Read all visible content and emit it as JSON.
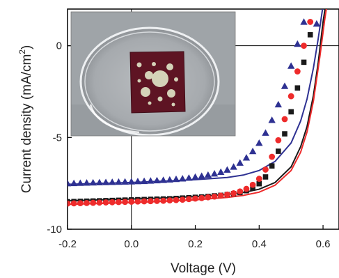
{
  "chart_data": {
    "type": "scatter",
    "title": "",
    "xlabel": "Voltage (V)",
    "ylabel_main": "Current density (mA/cm",
    "ylabel_sup": "2",
    "ylabel_close": ")",
    "xlim": [
      -0.2,
      0.65
    ],
    "ylim": [
      -10,
      2
    ],
    "x_ticks": [
      -0.2,
      0.0,
      0.2,
      0.4,
      0.6
    ],
    "x_tick_labels": [
      "-0.2",
      "0.0",
      "0.2",
      "0.4",
      "0.6"
    ],
    "y_ticks": [
      -10,
      -5,
      0
    ],
    "y_tick_labels": [
      "-10",
      "-5",
      "0"
    ],
    "zero_lines": true,
    "inset": "photograph of a Petri dish holding a dark red square device with circular openings",
    "series": [
      {
        "marker": "triangle",
        "color": "#2e3192",
        "points": [
          [
            -0.2,
            -7.5
          ],
          [
            -0.18,
            -7.49
          ],
          [
            -0.16,
            -7.48
          ],
          [
            -0.14,
            -7.47
          ],
          [
            -0.12,
            -7.46
          ],
          [
            -0.1,
            -7.45
          ],
          [
            -0.08,
            -7.44
          ],
          [
            -0.06,
            -7.43
          ],
          [
            -0.04,
            -7.42
          ],
          [
            -0.02,
            -7.41
          ],
          [
            0.0,
            -7.4
          ],
          [
            0.02,
            -7.39
          ],
          [
            0.04,
            -7.38
          ],
          [
            0.06,
            -7.36
          ],
          [
            0.08,
            -7.34
          ],
          [
            0.1,
            -7.32
          ],
          [
            0.12,
            -7.3
          ],
          [
            0.14,
            -7.27
          ],
          [
            0.16,
            -7.24
          ],
          [
            0.18,
            -7.2
          ],
          [
            0.2,
            -7.15
          ],
          [
            0.22,
            -7.1
          ],
          [
            0.24,
            -7.04
          ],
          [
            0.26,
            -6.97
          ],
          [
            0.28,
            -6.88
          ],
          [
            0.3,
            -6.76
          ],
          [
            0.32,
            -6.6
          ],
          [
            0.34,
            -6.38
          ],
          [
            0.36,
            -6.1
          ],
          [
            0.38,
            -5.75
          ],
          [
            0.4,
            -5.3
          ],
          [
            0.42,
            -4.75
          ],
          [
            0.44,
            -4.05
          ],
          [
            0.46,
            -3.2
          ],
          [
            0.48,
            -2.2
          ],
          [
            0.5,
            -1.1
          ],
          [
            0.52,
            0.1
          ],
          [
            0.54,
            1.3
          ],
          [
            0.58,
            1.2
          ]
        ]
      },
      {
        "marker": "square",
        "color": "#1a1a1a",
        "points": [
          [
            -0.2,
            -8.5
          ],
          [
            -0.18,
            -8.49
          ],
          [
            -0.16,
            -8.48
          ],
          [
            -0.14,
            -8.47
          ],
          [
            -0.12,
            -8.46
          ],
          [
            -0.1,
            -8.45
          ],
          [
            -0.08,
            -8.44
          ],
          [
            -0.06,
            -8.43
          ],
          [
            -0.04,
            -8.42
          ],
          [
            -0.02,
            -8.41
          ],
          [
            0.0,
            -8.4
          ],
          [
            0.02,
            -8.39
          ],
          [
            0.04,
            -8.38
          ],
          [
            0.06,
            -8.37
          ],
          [
            0.08,
            -8.36
          ],
          [
            0.1,
            -8.35
          ],
          [
            0.12,
            -8.34
          ],
          [
            0.14,
            -8.32
          ],
          [
            0.16,
            -8.3
          ],
          [
            0.18,
            -8.28
          ],
          [
            0.2,
            -8.26
          ],
          [
            0.22,
            -8.24
          ],
          [
            0.24,
            -8.21
          ],
          [
            0.26,
            -8.18
          ],
          [
            0.28,
            -8.15
          ],
          [
            0.3,
            -8.11
          ],
          [
            0.32,
            -8.06
          ],
          [
            0.34,
            -8.0
          ],
          [
            0.36,
            -7.9
          ],
          [
            0.38,
            -7.75
          ],
          [
            0.4,
            -7.52
          ],
          [
            0.42,
            -7.15
          ],
          [
            0.44,
            -6.55
          ],
          [
            0.46,
            -5.75
          ],
          [
            0.48,
            -4.8
          ],
          [
            0.5,
            -3.6
          ],
          [
            0.52,
            -2.3
          ],
          [
            0.54,
            -0.9
          ],
          [
            0.56,
            0.6
          ]
        ]
      },
      {
        "marker": "circle",
        "color": "#ee2b2b",
        "points": [
          [
            -0.2,
            -8.6
          ],
          [
            -0.18,
            -8.59
          ],
          [
            -0.16,
            -8.58
          ],
          [
            -0.14,
            -8.57
          ],
          [
            -0.12,
            -8.56
          ],
          [
            -0.1,
            -8.55
          ],
          [
            -0.08,
            -8.54
          ],
          [
            -0.06,
            -8.53
          ],
          [
            -0.04,
            -8.52
          ],
          [
            -0.02,
            -8.51
          ],
          [
            0.0,
            -8.5
          ],
          [
            0.02,
            -8.49
          ],
          [
            0.04,
            -8.48
          ],
          [
            0.06,
            -8.47
          ],
          [
            0.08,
            -8.46
          ],
          [
            0.1,
            -8.45
          ],
          [
            0.12,
            -8.43
          ],
          [
            0.14,
            -8.41
          ],
          [
            0.16,
            -8.39
          ],
          [
            0.18,
            -8.36
          ],
          [
            0.2,
            -8.33
          ],
          [
            0.22,
            -8.3
          ],
          [
            0.24,
            -8.26
          ],
          [
            0.26,
            -8.22
          ],
          [
            0.28,
            -8.17
          ],
          [
            0.3,
            -8.11
          ],
          [
            0.32,
            -8.04
          ],
          [
            0.34,
            -7.94
          ],
          [
            0.36,
            -7.8
          ],
          [
            0.38,
            -7.58
          ],
          [
            0.4,
            -7.25
          ],
          [
            0.42,
            -6.75
          ],
          [
            0.44,
            -6.05
          ],
          [
            0.46,
            -5.15
          ],
          [
            0.48,
            -4.0
          ],
          [
            0.5,
            -2.75
          ],
          [
            0.52,
            -1.4
          ],
          [
            0.54,
            0.0
          ],
          [
            0.56,
            1.3
          ]
        ]
      },
      {
        "style": "line",
        "color": "#2e3192",
        "points": [
          [
            -0.2,
            -7.55
          ],
          [
            -0.1,
            -7.5
          ],
          [
            0.0,
            -7.45
          ],
          [
            0.1,
            -7.38
          ],
          [
            0.2,
            -7.3
          ],
          [
            0.3,
            -7.18
          ],
          [
            0.35,
            -7.05
          ],
          [
            0.4,
            -6.8
          ],
          [
            0.45,
            -6.3
          ],
          [
            0.5,
            -5.3
          ],
          [
            0.53,
            -4.1
          ],
          [
            0.55,
            -2.9
          ],
          [
            0.57,
            -1.2
          ],
          [
            0.585,
            0.4
          ],
          [
            0.6,
            2.2
          ]
        ]
      },
      {
        "style": "line",
        "color": "#1a1a1a",
        "points": [
          [
            -0.2,
            -8.45
          ],
          [
            -0.1,
            -8.4
          ],
          [
            0.0,
            -8.35
          ],
          [
            0.1,
            -8.3
          ],
          [
            0.2,
            -8.22
          ],
          [
            0.3,
            -8.1
          ],
          [
            0.35,
            -8.0
          ],
          [
            0.4,
            -7.82
          ],
          [
            0.45,
            -7.45
          ],
          [
            0.5,
            -6.6
          ],
          [
            0.53,
            -5.5
          ],
          [
            0.55,
            -4.4
          ],
          [
            0.57,
            -2.7
          ],
          [
            0.585,
            -0.9
          ],
          [
            0.6,
            1.3
          ],
          [
            0.608,
            2.2
          ]
        ]
      },
      {
        "style": "line",
        "color": "#ee2b2b",
        "points": [
          [
            -0.2,
            -8.65
          ],
          [
            -0.1,
            -8.6
          ],
          [
            0.0,
            -8.55
          ],
          [
            0.1,
            -8.48
          ],
          [
            0.2,
            -8.4
          ],
          [
            0.3,
            -8.27
          ],
          [
            0.35,
            -8.16
          ],
          [
            0.4,
            -7.98
          ],
          [
            0.45,
            -7.6
          ],
          [
            0.5,
            -6.8
          ],
          [
            0.53,
            -5.8
          ],
          [
            0.55,
            -4.7
          ],
          [
            0.57,
            -3.0
          ],
          [
            0.59,
            -0.6
          ],
          [
            0.605,
            1.4
          ],
          [
            0.612,
            2.2
          ]
        ]
      }
    ]
  }
}
